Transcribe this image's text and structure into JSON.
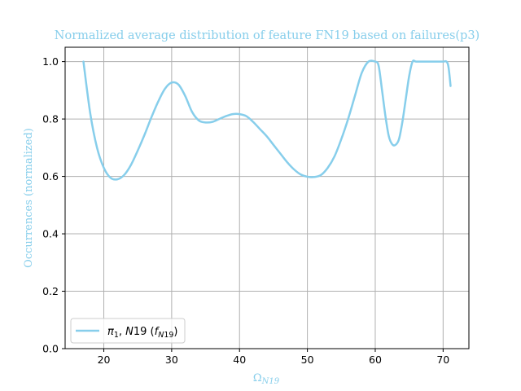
{
  "chart_data": {
    "type": "line",
    "title": "Normalized average distribution of feature FN19 based on failures(p3)",
    "xlabel": {
      "main": "Ω",
      "sub": "N19"
    },
    "ylabel": "Occurrences (normalized)",
    "xlim": [
      14.3,
      73.8
    ],
    "ylim": [
      0.0,
      1.05
    ],
    "xticks": [
      20,
      30,
      40,
      50,
      60,
      70
    ],
    "yticks": [
      0.0,
      0.2,
      0.4,
      0.6,
      0.8,
      1.0
    ],
    "grid": true,
    "legend_position": "lower-left",
    "series": [
      {
        "name": "π1, N19 (fN19)",
        "color": "#87ceeb",
        "x": [
          17,
          18,
          19,
          20,
          21,
          22,
          23,
          24,
          25,
          26,
          27,
          28,
          29,
          30,
          31,
          32,
          33,
          34,
          35,
          36,
          37,
          38,
          39,
          40,
          41,
          42,
          43,
          44,
          45,
          46,
          47,
          48,
          49,
          50,
          51,
          52,
          53,
          54,
          55,
          56,
          57,
          58,
          59,
          60,
          60.5,
          61,
          61.5,
          62,
          62.5,
          63,
          63.5,
          64,
          64.5,
          65,
          65.5,
          66,
          67,
          68,
          69,
          70,
          70.5,
          70.8,
          71.1
        ],
        "y": [
          1.0,
          0.82,
          0.7,
          0.63,
          0.595,
          0.59,
          0.605,
          0.64,
          0.69,
          0.745,
          0.805,
          0.86,
          0.905,
          0.927,
          0.92,
          0.88,
          0.825,
          0.795,
          0.788,
          0.79,
          0.8,
          0.81,
          0.817,
          0.817,
          0.81,
          0.79,
          0.765,
          0.74,
          0.71,
          0.68,
          0.65,
          0.625,
          0.607,
          0.599,
          0.598,
          0.605,
          0.63,
          0.67,
          0.73,
          0.8,
          0.88,
          0.96,
          1.0,
          1.0,
          0.985,
          0.9,
          0.81,
          0.74,
          0.712,
          0.71,
          0.73,
          0.79,
          0.87,
          0.95,
          1.0,
          1.0,
          1.0,
          1.0,
          1.0,
          1.0,
          1.0,
          0.98,
          0.915
        ]
      }
    ]
  }
}
